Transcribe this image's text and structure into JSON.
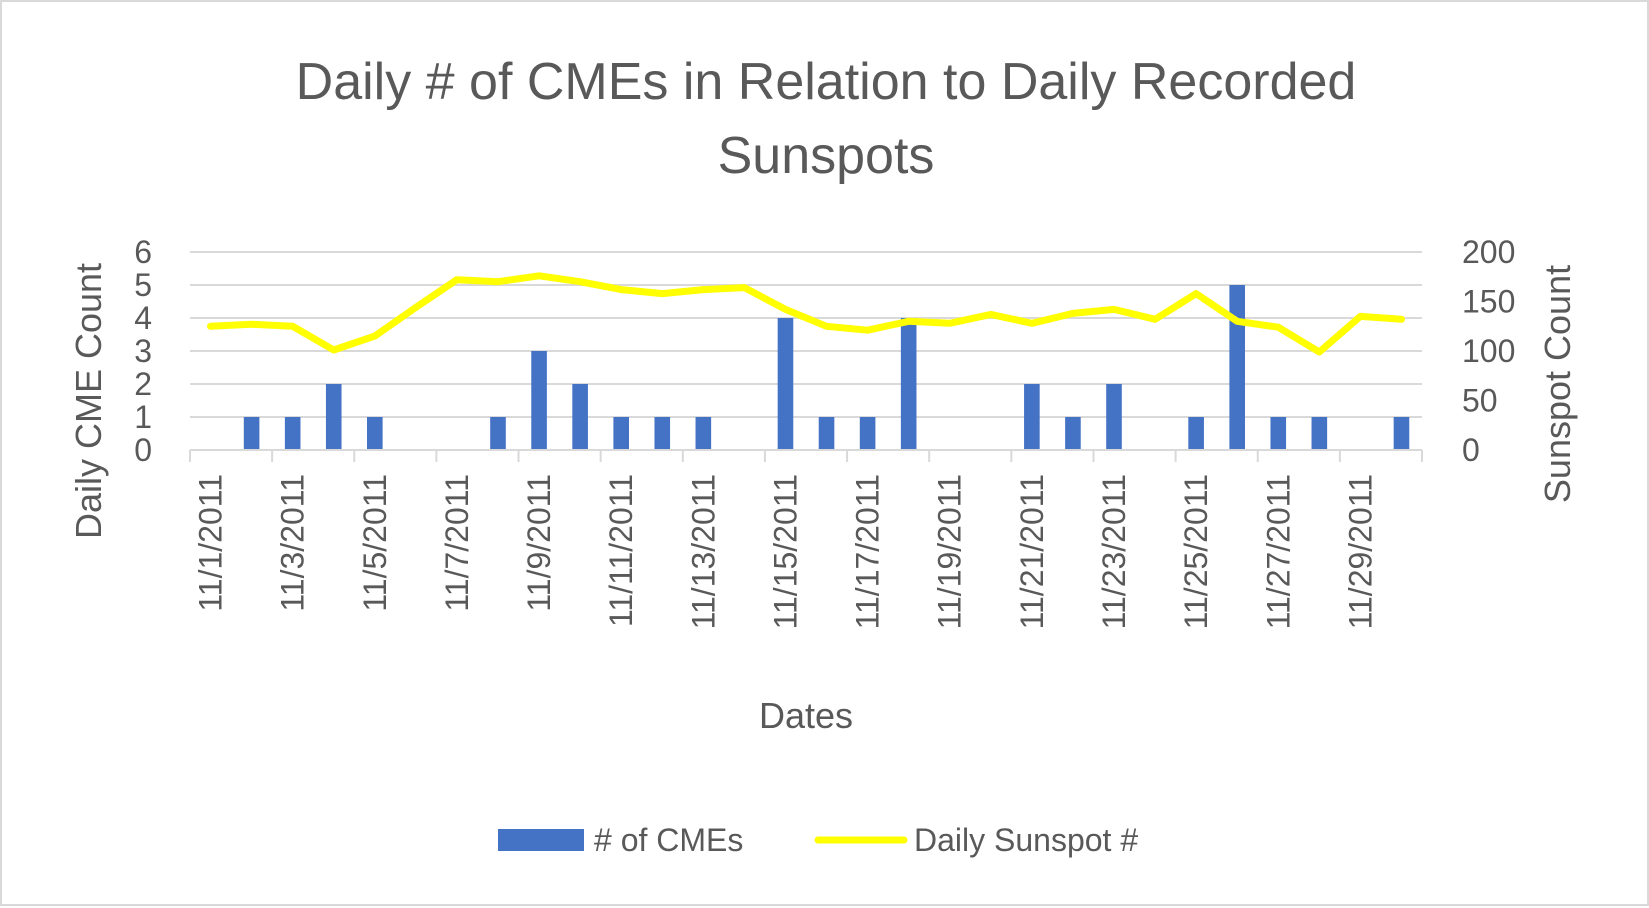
{
  "chart_data": {
    "type": "bar",
    "title_lines": [
      "Daily # of CMEs in Relation to Daily Recorded",
      "Sunspots"
    ],
    "xlabel": "Dates",
    "ylabel": "Daily CME Count",
    "y2label": "Sunspot Count",
    "categories": [
      "11/1/2011",
      "11/2/2011",
      "11/3/2011",
      "11/4/2011",
      "11/5/2011",
      "11/6/2011",
      "11/7/2011",
      "11/8/2011",
      "11/9/2011",
      "11/10/2011",
      "11/11/2011",
      "11/12/2011",
      "11/13/2011",
      "11/14/2011",
      "11/15/2011",
      "11/16/2011",
      "11/17/2011",
      "11/18/2011",
      "11/19/2011",
      "11/20/2011",
      "11/21/2011",
      "11/22/2011",
      "11/23/2011",
      "11/24/2011",
      "11/25/2011",
      "11/26/2011",
      "11/27/2011",
      "11/28/2011",
      "11/29/2011",
      "11/30/2011"
    ],
    "x_tick_labels": [
      "11/1/2011",
      "11/3/2011",
      "11/5/2011",
      "11/7/2011",
      "11/9/2011",
      "11/11/2011",
      "11/13/2011",
      "11/15/2011",
      "11/17/2011",
      "11/19/2011",
      "11/21/2011",
      "11/23/2011",
      "11/25/2011",
      "11/27/2011",
      "11/29/2011"
    ],
    "ylim": [
      0,
      6
    ],
    "y_ticks": [
      0,
      1,
      2,
      3,
      4,
      5,
      6
    ],
    "y2lim": [
      0,
      200
    ],
    "y2_ticks": [
      0,
      50,
      100,
      150,
      200
    ],
    "series": [
      {
        "name": "# of CMEs",
        "type": "bar",
        "axis": "left",
        "color": "#4472c4",
        "values": [
          0,
          1,
          1,
          2,
          1,
          0,
          0,
          1,
          3,
          2,
          1,
          1,
          1,
          0,
          4,
          1,
          1,
          4,
          0,
          0,
          2,
          1,
          2,
          0,
          1,
          5,
          1,
          1,
          0,
          1
        ]
      },
      {
        "name": "Daily Sunspot #",
        "type": "line",
        "axis": "right",
        "color": "#ffff00",
        "values": [
          125,
          127,
          125,
          101,
          115,
          144,
          172,
          170,
          176,
          170,
          162,
          158,
          162,
          164,
          142,
          125,
          121,
          130,
          128,
          137,
          128,
          138,
          142,
          132,
          158,
          130,
          124,
          99,
          135,
          132
        ]
      }
    ],
    "grid": true,
    "legend": "bottom"
  }
}
